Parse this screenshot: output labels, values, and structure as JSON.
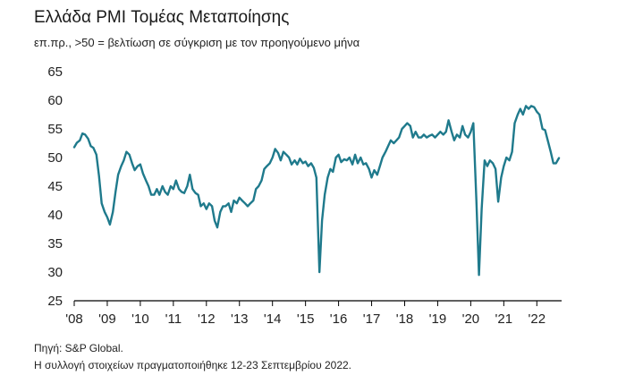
{
  "chart_data": {
    "type": "line",
    "title": "Ελλάδα PMI Τομέας Μεταποίησης",
    "subtitle": "επ.πρ., >50 = βελτίωση σε σύγκριση με τον προηγούμενο μήνα",
    "ylim": [
      25,
      65
    ],
    "yticks": [
      "65",
      "60",
      "55",
      "50",
      "45",
      "40",
      "35",
      "30",
      "25"
    ],
    "xlim": [
      2008.0,
      2022.75
    ],
    "xticks": [
      {
        "x": 2008,
        "label": "'08"
      },
      {
        "x": 2009,
        "label": "'09"
      },
      {
        "x": 2010,
        "label": "'10"
      },
      {
        "x": 2011,
        "label": "'11"
      },
      {
        "x": 2012,
        "label": "'12"
      },
      {
        "x": 2013,
        "label": "'13"
      },
      {
        "x": 2014,
        "label": "'14"
      },
      {
        "x": 2015,
        "label": "'15"
      },
      {
        "x": 2016,
        "label": "'16"
      },
      {
        "x": 2017,
        "label": "'17"
      },
      {
        "x": 2018,
        "label": "'18"
      },
      {
        "x": 2019,
        "label": "'19"
      },
      {
        "x": 2020,
        "label": "'20"
      },
      {
        "x": 2021,
        "label": "'21"
      },
      {
        "x": 2022,
        "label": "'22"
      }
    ],
    "line_color": "#1f7a8c",
    "series": [
      {
        "x": [
          2008.0,
          2008.08,
          2008.17,
          2008.25,
          2008.33,
          2008.42,
          2008.5,
          2008.58,
          2008.67,
          2008.75,
          2008.83,
          2008.92,
          2009.0,
          2009.08,
          2009.17,
          2009.25,
          2009.33,
          2009.42,
          2009.5,
          2009.58,
          2009.67,
          2009.75,
          2009.83,
          2009.92,
          2010.0,
          2010.08,
          2010.17,
          2010.25,
          2010.33,
          2010.42,
          2010.5,
          2010.58,
          2010.67,
          2010.75,
          2010.83,
          2010.92,
          2011.0,
          2011.08,
          2011.17,
          2011.25,
          2011.33,
          2011.42,
          2011.5,
          2011.58,
          2011.67,
          2011.75,
          2011.83,
          2011.92,
          2012.0,
          2012.08,
          2012.17,
          2012.25,
          2012.33,
          2012.42,
          2012.5,
          2012.58,
          2012.67,
          2012.75,
          2012.83,
          2012.92,
          2013.0,
          2013.08,
          2013.17,
          2013.25,
          2013.33,
          2013.42,
          2013.5,
          2013.58,
          2013.67,
          2013.75,
          2013.83,
          2013.92,
          2014.0,
          2014.08,
          2014.17,
          2014.25,
          2014.33,
          2014.42,
          2014.5,
          2014.58,
          2014.67,
          2014.75,
          2014.83,
          2014.92,
          2015.0,
          2015.08,
          2015.17,
          2015.25,
          2015.33,
          2015.42,
          2015.5,
          2015.58,
          2015.67,
          2015.75,
          2015.83,
          2015.92,
          2016.0,
          2016.08,
          2016.17,
          2016.25,
          2016.33,
          2016.42,
          2016.5,
          2016.58,
          2016.67,
          2016.75,
          2016.83,
          2016.92,
          2017.0,
          2017.08,
          2017.17,
          2017.25,
          2017.33,
          2017.42,
          2017.5,
          2017.58,
          2017.67,
          2017.75,
          2017.83,
          2017.92,
          2018.0,
          2018.08,
          2018.17,
          2018.25,
          2018.33,
          2018.42,
          2018.5,
          2018.58,
          2018.67,
          2018.75,
          2018.83,
          2018.92,
          2019.0,
          2019.08,
          2019.17,
          2019.25,
          2019.33,
          2019.42,
          2019.5,
          2019.58,
          2019.67,
          2019.75,
          2019.83,
          2019.92,
          2020.0,
          2020.08,
          2020.17,
          2020.25,
          2020.33,
          2020.42,
          2020.5,
          2020.58,
          2020.67,
          2020.75,
          2020.83,
          2020.92,
          2021.0,
          2021.08,
          2021.17,
          2021.25,
          2021.33,
          2021.42,
          2021.5,
          2021.58,
          2021.67,
          2021.75,
          2021.83,
          2021.92,
          2022.0,
          2022.08,
          2022.17,
          2022.25,
          2022.33,
          2022.42,
          2022.5,
          2022.58,
          2022.67
        ],
        "values": [
          51.8,
          52.6,
          53.0,
          54.2,
          54.0,
          53.3,
          52.0,
          51.7,
          50.5,
          46.8,
          42.0,
          40.5,
          39.6,
          38.3,
          40.5,
          44.0,
          47.0,
          48.5,
          49.5,
          51.0,
          50.5,
          49.0,
          47.8,
          48.5,
          48.8,
          47.2,
          46.0,
          45.0,
          43.5,
          43.5,
          44.5,
          43.5,
          45.0,
          44.0,
          43.5,
          45.0,
          44.5,
          46.0,
          44.5,
          44.0,
          43.8,
          45.0,
          47.0,
          44.5,
          43.8,
          43.5,
          41.5,
          42.0,
          41.0,
          42.0,
          41.5,
          39.0,
          37.8,
          40.5,
          41.5,
          41.5,
          42.0,
          40.5,
          42.5,
          42.0,
          43.0,
          42.5,
          42.0,
          41.5,
          42.0,
          42.5,
          44.5,
          45.0,
          46.0,
          48.0,
          48.5,
          49.0,
          50.0,
          51.5,
          50.8,
          49.5,
          51.0,
          50.5,
          50.0,
          48.8,
          49.5,
          48.8,
          49.8,
          49.0,
          49.3,
          48.5,
          49.0,
          48.2,
          46.5,
          30.0,
          39.0,
          43.5,
          46.5,
          48.0,
          47.5,
          50.0,
          50.5,
          49.2,
          49.7,
          49.5,
          50.0,
          48.8,
          50.5,
          49.0,
          50.0,
          48.8,
          49.0,
          48.0,
          46.5,
          47.8,
          47.0,
          48.5,
          50.0,
          51.0,
          52.0,
          53.0,
          52.5,
          53.0,
          53.5,
          55.0,
          55.5,
          56.0,
          55.5,
          53.5,
          54.5,
          53.5,
          53.5,
          54.0,
          53.5,
          53.8,
          54.0,
          53.5,
          54.0,
          54.5,
          54.0,
          54.5,
          56.5,
          54.5,
          53.0,
          54.0,
          53.5,
          55.5,
          54.0,
          53.5,
          54.5,
          56.0,
          42.5,
          29.5,
          41.0,
          49.5,
          48.5,
          49.5,
          49.0,
          48.0,
          42.3,
          46.5,
          48.5,
          50.0,
          49.5,
          51.0,
          56.0,
          57.5,
          58.5,
          57.5,
          59.0,
          58.5,
          59.0,
          58.8,
          58.0,
          57.5,
          55.0,
          54.8,
          53.0,
          51.0,
          49.0,
          49.0,
          49.9
        ]
      }
    ],
    "notes": [
      "Πηγή: S&P Global.",
      "Η συλλογή στοιχείων πραγματοποιήθηκε 12-23 Σεπτεμβρίου 2022."
    ]
  }
}
